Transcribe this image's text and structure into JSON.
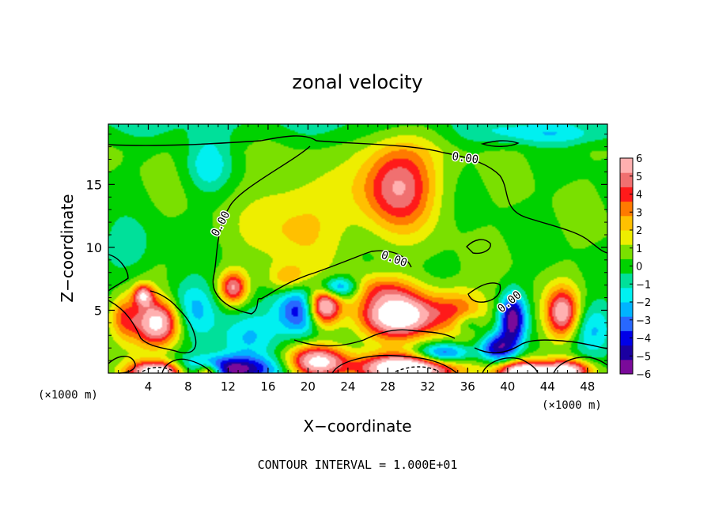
{
  "chart_data": {
    "type": "heatmap",
    "title": "zonal velocity",
    "xlabel": "X−coordinate",
    "ylabel": "Z−coordinate",
    "x_scale_note_left": "(×1000 m)",
    "x_scale_note_right": "(×1000 m)",
    "footer": "CONTOUR INTERVAL = 1.000E+01",
    "xlim": [
      0,
      50
    ],
    "ylim": [
      0,
      19.8
    ],
    "x_ticks": [
      4,
      8,
      12,
      16,
      20,
      24,
      28,
      32,
      36,
      40,
      44,
      48
    ],
    "y_ticks": [
      5,
      10,
      15
    ],
    "colorbar": {
      "range": [
        -6,
        6
      ],
      "tick_labels": [
        "6",
        "5",
        "4",
        "3",
        "2",
        "1",
        "0",
        "−1",
        "−2",
        "−3",
        "−4",
        "−5",
        "−6"
      ],
      "tick_values": [
        6,
        5,
        4,
        3,
        2,
        1,
        0,
        -1,
        -2,
        -3,
        -4,
        -5,
        -6
      ],
      "colors": [
        "#7a0a9a",
        "#1a00a0",
        "#0000e8",
        "#2868ff",
        "#00b4ff",
        "#00f0f0",
        "#00e09a",
        "#00d200",
        "#7ae000",
        "#eeee00",
        "#ffc000",
        "#ff7a00",
        "#ff1a1a",
        "#f07070",
        "#ffb0b0"
      ]
    },
    "contour_label": "0.00",
    "features": [
      {
        "x": 29,
        "z": 15,
        "value": 5.0,
        "sx": 2.6,
        "sz": 2.5
      },
      {
        "x": 19,
        "z": 12,
        "value": 2.0,
        "sx": 3.5,
        "sz": 2.5
      },
      {
        "x": 12.5,
        "z": 6.8,
        "value": 5.0,
        "sx": 1.0,
        "sz": 0.9
      },
      {
        "x": 18,
        "z": 7.5,
        "value": 2.5,
        "sx": 1.4,
        "sz": 0.8
      },
      {
        "x": 5,
        "z": 4,
        "value": 7.0,
        "sx": 1.7,
        "sz": 1.3
      },
      {
        "x": 3.5,
        "z": 6.2,
        "value": 5.0,
        "sx": 0.7,
        "sz": 0.6
      },
      {
        "x": 1.5,
        "z": 4.5,
        "value": 3.0,
        "sx": 1.0,
        "sz": 1.2
      },
      {
        "x": 8.5,
        "z": 5,
        "value": -3.0,
        "sx": 1.8,
        "sz": 1.6
      },
      {
        "x": 14,
        "z": 3,
        "value": -2.5,
        "sx": 2.2,
        "sz": 1.5
      },
      {
        "x": 21.5,
        "z": 5.3,
        "value": 8.0,
        "sx": 1.2,
        "sz": 1.1
      },
      {
        "x": 19.5,
        "z": 5,
        "value": -5.0,
        "sx": 1.7,
        "sz": 1.4
      },
      {
        "x": 23,
        "z": 6.8,
        "value": -4.5,
        "sx": 1.4,
        "sz": 0.6
      },
      {
        "x": 29,
        "z": 4.6,
        "value": 7.5,
        "sx": 2.7,
        "sz": 1.3
      },
      {
        "x": 27,
        "z": 6.8,
        "value": 2.0,
        "sx": 2.5,
        "sz": 0.8
      },
      {
        "x": 35,
        "z": 5,
        "value": 3.0,
        "sx": 2.0,
        "sz": 1.2
      },
      {
        "x": 36,
        "z": 4,
        "value": -2.0,
        "sx": 1.0,
        "sz": 0.6
      },
      {
        "x": 40.5,
        "z": 4.3,
        "value": -6.0,
        "sx": 0.9,
        "sz": 1.4
      },
      {
        "x": 39,
        "z": 2,
        "value": -5.0,
        "sx": 1.2,
        "sz": 0.8
      },
      {
        "x": 45.5,
        "z": 4.8,
        "value": 5.5,
        "sx": 1.2,
        "sz": 1.4
      },
      {
        "x": 48.5,
        "z": 3.5,
        "value": -2.5,
        "sx": 1.5,
        "sz": 1.5
      },
      {
        "x": 11.5,
        "z": 0.3,
        "value": -6.0,
        "sx": 3.8,
        "sz": 0.7
      },
      {
        "x": 5,
        "z": 0.1,
        "value": 9.0,
        "sx": 2.0,
        "sz": 0.6
      },
      {
        "x": 10,
        "z": 0.1,
        "value": 6.0,
        "sx": 1.0,
        "sz": 0.5
      },
      {
        "x": 21,
        "z": 0.9,
        "value": 6.5,
        "sx": 2.0,
        "sz": 0.9
      },
      {
        "x": 30,
        "z": 0.4,
        "value": 9.0,
        "sx": 3.3,
        "sz": 0.8
      },
      {
        "x": 33.5,
        "z": 1.5,
        "value": -5.0,
        "sx": 2.0,
        "sz": 0.6
      },
      {
        "x": 41.5,
        "z": 0.1,
        "value": 8.0,
        "sx": 1.8,
        "sz": 0.6
      },
      {
        "x": 46,
        "z": 0.2,
        "value": 7.0,
        "sx": 1.7,
        "sz": 0.6
      },
      {
        "x": 10,
        "z": 16.5,
        "value": -2.0,
        "sx": 1.5,
        "sz": 1.5
      },
      {
        "x": 2,
        "z": 10,
        "value": -1.5,
        "sx": 1.8,
        "sz": 1.5
      },
      {
        "x": 44,
        "z": 19,
        "value": -1.5,
        "sx": 5.0,
        "sz": 0.6
      }
    ]
  }
}
